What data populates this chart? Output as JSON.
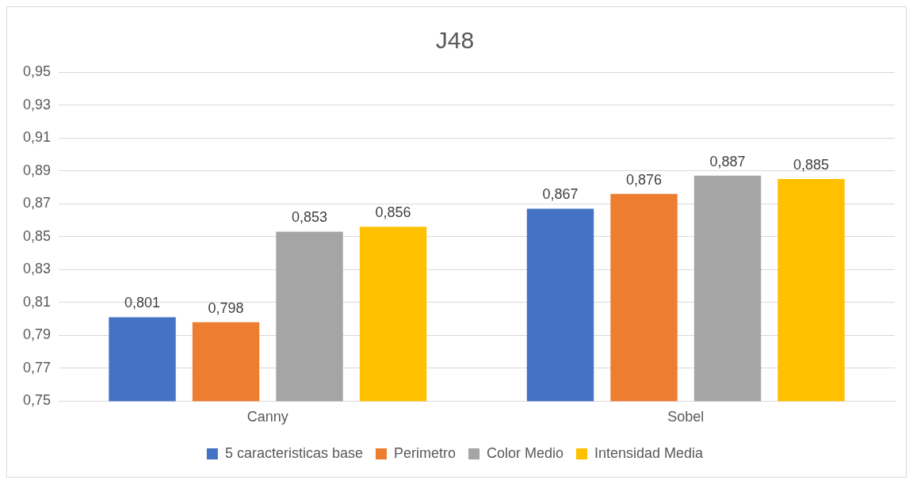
{
  "chart_data": {
    "type": "bar",
    "title": "J48",
    "categories": [
      "Canny",
      "Sobel"
    ],
    "series": [
      {
        "name": "5 caracteristicas base",
        "color": "#4472c4",
        "values": [
          0.801,
          0.867
        ],
        "value_labels": [
          "0,801",
          "0,867"
        ]
      },
      {
        "name": "Perimetro",
        "color": "#ed7d31",
        "values": [
          0.798,
          0.876
        ],
        "value_labels": [
          "0,798",
          "0,876"
        ]
      },
      {
        "name": "Color Medio",
        "color": "#a5a5a5",
        "values": [
          0.853,
          0.887
        ],
        "value_labels": [
          "0,853",
          "0,887"
        ]
      },
      {
        "name": "Intensidad Media",
        "color": "#ffc000",
        "values": [
          0.856,
          0.885
        ],
        "value_labels": [
          "0,856",
          "0,885"
        ]
      }
    ],
    "ylim": [
      0.75,
      0.95
    ],
    "yticks": [
      {
        "value": 0.75,
        "label": "0,75"
      },
      {
        "value": 0.77,
        "label": "0,77"
      },
      {
        "value": 0.79,
        "label": "0,79"
      },
      {
        "value": 0.81,
        "label": "0,81"
      },
      {
        "value": 0.83,
        "label": "0,83"
      },
      {
        "value": 0.85,
        "label": "0,85"
      },
      {
        "value": 0.87,
        "label": "0,87"
      },
      {
        "value": 0.89,
        "label": "0,89"
      },
      {
        "value": 0.91,
        "label": "0,91"
      },
      {
        "value": 0.93,
        "label": "0,93"
      },
      {
        "value": 0.95,
        "label": "0,95"
      }
    ],
    "grid": "y",
    "legend": "bottom"
  }
}
